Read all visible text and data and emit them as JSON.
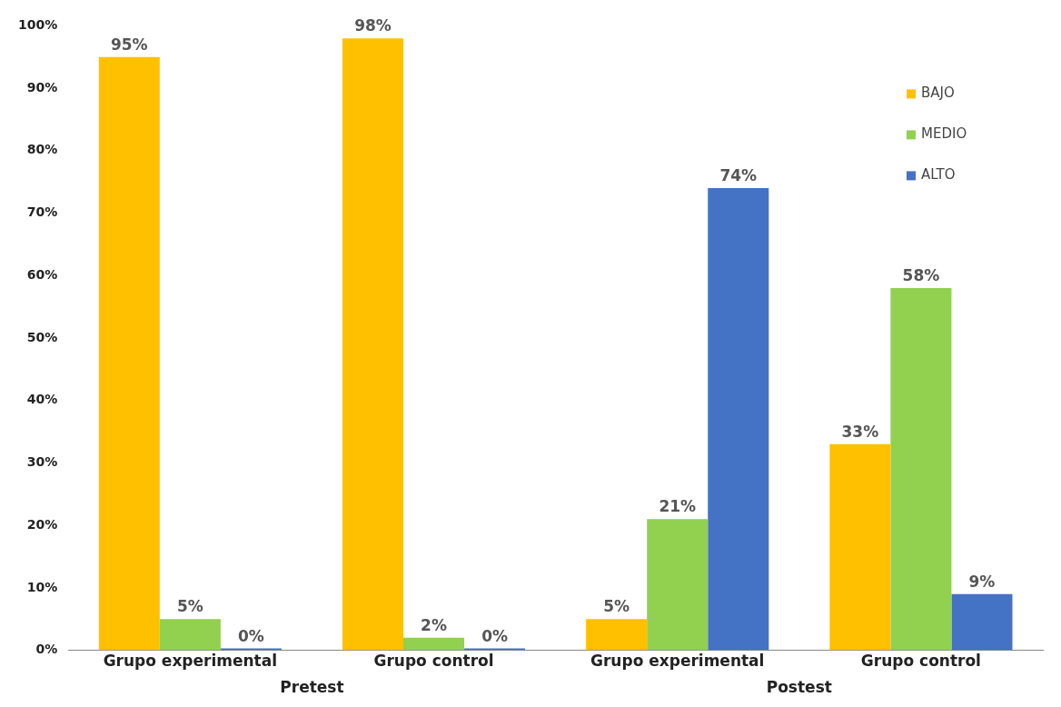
{
  "chart_data": {
    "type": "bar",
    "categories": [
      "Grupo experimental",
      "Grupo control",
      "Grupo experimental",
      "Grupo control"
    ],
    "series": [
      {
        "name": "BAJO",
        "color": "#ffc000",
        "values": [
          95,
          98,
          5,
          33
        ],
        "value_labels": [
          "95%",
          "98%",
          "5%",
          "33%"
        ]
      },
      {
        "name": "MEDIO",
        "color": "#92d050",
        "values": [
          5,
          2,
          21,
          58
        ],
        "value_labels": [
          "5%",
          "2%",
          "21%",
          "58%"
        ]
      },
      {
        "name": "ALTO",
        "color": "#4472c4",
        "values": [
          0,
          0,
          74,
          9
        ],
        "value_labels": [
          "0%",
          "0%",
          "74%",
          "9%"
        ]
      }
    ],
    "ylim": [
      0,
      100
    ],
    "yticks": [
      {
        "value": 0,
        "label": "0%"
      },
      {
        "value": 10,
        "label": "10%"
      },
      {
        "value": 20,
        "label": "20%"
      },
      {
        "value": 30,
        "label": "30%"
      },
      {
        "value": 40,
        "label": "40%"
      },
      {
        "value": 50,
        "label": "50%"
      },
      {
        "value": 60,
        "label": "60%"
      },
      {
        "value": 70,
        "label": "70%"
      },
      {
        "value": 80,
        "label": "80%"
      },
      {
        "value": 90,
        "label": "90%"
      },
      {
        "value": 100,
        "label": "100%"
      }
    ],
    "grid": false,
    "legend": "top right",
    "annotations": [
      "Pretest",
      "Postest"
    ]
  }
}
